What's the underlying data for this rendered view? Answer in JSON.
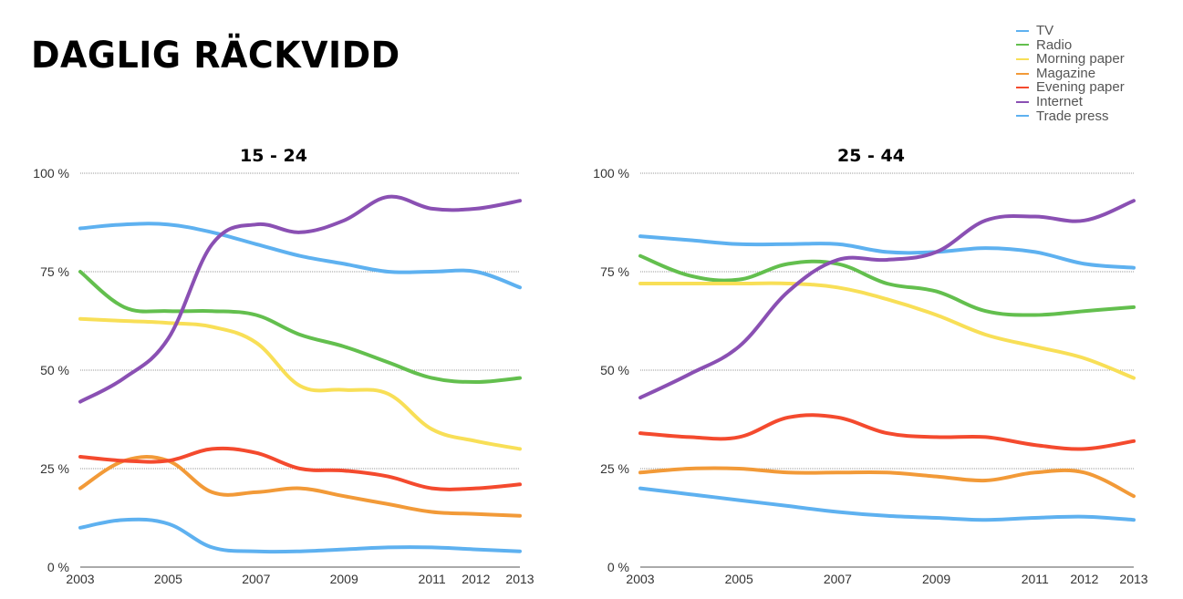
{
  "page": {
    "title": "DAGLIG RÄCKVIDD"
  },
  "legend": [
    {
      "label": "TV",
      "color": "#5eb1f0"
    },
    {
      "label": "Radio",
      "color": "#63bf4e"
    },
    {
      "label": "Morning paper",
      "color": "#f8df57"
    },
    {
      "label": "Magazine",
      "color": "#f29a38"
    },
    {
      "label": "Evening paper",
      "color": "#f44a2e"
    },
    {
      "label": "Internet",
      "color": "#8a50b3"
    },
    {
      "label": "Trade press",
      "color": "#5eb1f0"
    }
  ],
  "chart_data": [
    {
      "type": "line",
      "title": "15 - 24",
      "xlabel": "",
      "ylabel": "",
      "ylim": [
        0,
        100
      ],
      "y_ticks": [
        "0 %",
        "25 %",
        "50 %",
        "75 %",
        "100 %"
      ],
      "x": [
        2003,
        2004,
        2005,
        2006,
        2007,
        2008,
        2009,
        2010,
        2011,
        2012,
        2013
      ],
      "x_ticks": [
        "2003",
        "2005",
        "2007",
        "2009",
        "2011",
        "2012",
        "2013"
      ],
      "series": [
        {
          "name": "TV",
          "color": "#5eb1f0",
          "values": [
            86,
            87,
            87,
            85,
            82,
            79,
            77,
            75,
            75,
            75,
            71
          ]
        },
        {
          "name": "Radio",
          "color": "#63bf4e",
          "values": [
            75,
            66,
            65,
            65,
            64,
            59,
            56,
            52,
            48,
            47,
            48
          ]
        },
        {
          "name": "Morning paper",
          "color": "#f8df57",
          "values": [
            63,
            62.5,
            62,
            61,
            57,
            46,
            45,
            44,
            35,
            32,
            30
          ]
        },
        {
          "name": "Magazine",
          "color": "#f29a38",
          "values": [
            20,
            27,
            27,
            19,
            19,
            20,
            18,
            16,
            14,
            13.5,
            13
          ]
        },
        {
          "name": "Evening paper",
          "color": "#f44a2e",
          "values": [
            28,
            27,
            27,
            30,
            29,
            25,
            24.5,
            23,
            20,
            20,
            21
          ]
        },
        {
          "name": "Internet",
          "color": "#8a50b3",
          "values": [
            42,
            48,
            58,
            82,
            87,
            85,
            88,
            94,
            91,
            91,
            93
          ]
        },
        {
          "name": "Trade press",
          "color": "#5eb1f0",
          "values": [
            10,
            12,
            11,
            5,
            4,
            4,
            4.5,
            5,
            5,
            4.5,
            4
          ]
        }
      ]
    },
    {
      "type": "line",
      "title": "25 - 44",
      "xlabel": "",
      "ylabel": "",
      "ylim": [
        0,
        100
      ],
      "y_ticks": [
        "0 %",
        "25 %",
        "50 %",
        "75 %",
        "100 %"
      ],
      "x": [
        2003,
        2004,
        2005,
        2006,
        2007,
        2008,
        2009,
        2010,
        2011,
        2012,
        2013
      ],
      "x_ticks": [
        "2003",
        "2005",
        "2007",
        "2009",
        "2011",
        "2012",
        "2013"
      ],
      "series": [
        {
          "name": "TV",
          "color": "#5eb1f0",
          "values": [
            84,
            83,
            82,
            82,
            82,
            80,
            80,
            81,
            80,
            77,
            76
          ]
        },
        {
          "name": "Radio",
          "color": "#63bf4e",
          "values": [
            79,
            74,
            73,
            77,
            77,
            72,
            70,
            65,
            64,
            65,
            66
          ]
        },
        {
          "name": "Morning paper",
          "color": "#f8df57",
          "values": [
            72,
            72,
            72,
            72,
            71,
            68,
            64,
            59,
            56,
            53,
            48
          ]
        },
        {
          "name": "Magazine",
          "color": "#f29a38",
          "values": [
            24,
            25,
            25,
            24,
            24,
            24,
            23,
            22,
            24,
            24,
            18
          ]
        },
        {
          "name": "Evening paper",
          "color": "#f44a2e",
          "values": [
            34,
            33,
            33,
            38,
            38,
            34,
            33,
            33,
            31,
            30,
            32
          ]
        },
        {
          "name": "Internet",
          "color": "#8a50b3",
          "values": [
            43,
            49,
            56,
            70,
            78,
            78,
            80,
            88,
            89,
            88,
            93
          ]
        },
        {
          "name": "Trade press",
          "color": "#5eb1f0",
          "values": [
            20,
            18.5,
            17,
            15.5,
            14,
            13,
            12.5,
            12,
            12.5,
            12.8,
            12
          ]
        }
      ]
    }
  ]
}
